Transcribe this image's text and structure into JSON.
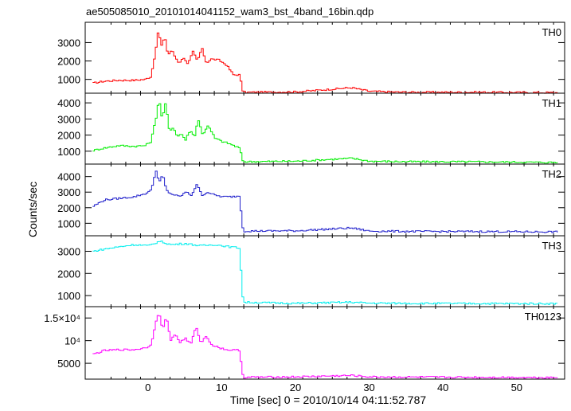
{
  "title": "ae505085010_20101014041152_wam3_bst_4band_16bin.qdp",
  "chart_data": {
    "type": "line",
    "title": "ae505085010_20101014041152_wam3_bst_4band_16bin.qdp",
    "xlabel": "Time [sec] 0 = 2010/10/14 04:11:52.787",
    "ylabel": "Counts/sec",
    "xlim": [
      -8.5,
      56.5
    ],
    "x_ticks": [
      0,
      10,
      20,
      30,
      40,
      50
    ],
    "x_tick_labels": [
      "0",
      "10",
      "20",
      "30",
      "40",
      "50"
    ],
    "grid": false,
    "panels": [
      {
        "name": "TH0",
        "color": "#ff0000",
        "ylim": [
          250,
          4100
        ],
        "y_ticks": [
          1000,
          2000,
          3000
        ],
        "y_tick_labels": [
          "1000",
          "2000",
          "3000"
        ],
        "x": [
          -7.5,
          -6,
          -4,
          -2,
          -0.5,
          0.3,
          1.0,
          1.3,
          1.7,
          2.2,
          2.6,
          3.1,
          3.6,
          4.1,
          4.8,
          5.3,
          6.0,
          6.6,
          7.2,
          7.8,
          8.5,
          9.5,
          10.5,
          11.5,
          12.3,
          12.8,
          20,
          27.5,
          30,
          35,
          45,
          55.5
        ],
        "y": [
          800,
          900,
          950,
          950,
          1000,
          1150,
          2700,
          3700,
          2800,
          3300,
          2300,
          2600,
          2200,
          1900,
          2200,
          1800,
          2500,
          2000,
          2700,
          1900,
          2100,
          2050,
          1800,
          1250,
          1250,
          300,
          320,
          550,
          350,
          300,
          300,
          280
        ]
      },
      {
        "name": "TH1",
        "color": "#00ee00",
        "ylim": [
          200,
          4600
        ],
        "y_ticks": [
          1000,
          2000,
          3000,
          4000
        ],
        "y_tick_labels": [
          "1000",
          "2000",
          "3000",
          "4000"
        ],
        "x": [
          -7.5,
          -6,
          -4,
          -2,
          -0.5,
          0.3,
          1.0,
          1.4,
          1.8,
          2.3,
          2.8,
          3.3,
          3.9,
          4.4,
          5.0,
          5.6,
          6.2,
          6.7,
          7.3,
          8.0,
          9.0,
          10.0,
          11.0,
          12.3,
          12.8,
          20,
          27.5,
          30,
          35,
          45,
          55.5
        ],
        "y": [
          1050,
          1200,
          1350,
          1300,
          1350,
          1600,
          3100,
          4300,
          3000,
          4000,
          2200,
          2500,
          1900,
          2100,
          1700,
          2300,
          1900,
          3000,
          2000,
          2600,
          1800,
          1600,
          1450,
          1200,
          350,
          380,
          560,
          380,
          350,
          340,
          300
        ]
      },
      {
        "name": "TH2",
        "color": "#2222cc",
        "ylim": [
          200,
          4800
        ],
        "y_ticks": [
          1000,
          2000,
          3000,
          4000
        ],
        "y_tick_labels": [
          "1000",
          "2000",
          "3000",
          "4000"
        ],
        "x": [
          -7.5,
          -6,
          -4,
          -2,
          -0.5,
          0.3,
          1.0,
          1.4,
          1.9,
          2.4,
          3.0,
          3.6,
          4.2,
          5.0,
          5.8,
          6.5,
          7.2,
          8.0,
          9.0,
          10.0,
          11.0,
          12.3,
          12.8,
          20,
          27.5,
          30,
          35,
          45,
          55.5
        ],
        "y": [
          2100,
          2500,
          2600,
          2700,
          2900,
          3100,
          4400,
          3600,
          4100,
          3100,
          2900,
          2800,
          2700,
          3000,
          2800,
          3500,
          2800,
          3000,
          2800,
          2700,
          2700,
          2750,
          500,
          520,
          700,
          500,
          480,
          470,
          450
        ]
      },
      {
        "name": "TH3",
        "color": "#00eeee",
        "ylim": [
          500,
          3700
        ],
        "y_ticks": [
          1000,
          2000,
          3000
        ],
        "y_tick_labels": [
          "1000",
          "2000",
          "3000"
        ],
        "x": [
          -7.5,
          -6,
          -4,
          -2,
          0,
          1.5,
          3,
          5,
          7,
          9,
          11,
          12.3,
          12.8,
          20,
          27.5,
          30,
          35,
          45,
          55.5
        ],
        "y": [
          3000,
          3100,
          3200,
          3300,
          3250,
          3450,
          3300,
          3350,
          3250,
          3300,
          3200,
          3150,
          700,
          650,
          700,
          660,
          650,
          640,
          640
        ]
      },
      {
        "name": "TH0123",
        "color": "#ff00ff",
        "ylim": [
          1500,
          17500
        ],
        "y_ticks": [
          5000,
          10000,
          15000
        ],
        "y_tick_labels": [
          "5000",
          "10⁴",
          "1.5×10⁴"
        ],
        "x": [
          -7.5,
          -6,
          -4,
          -2,
          -0.5,
          0.3,
          1.0,
          1.4,
          1.9,
          2.4,
          3.0,
          3.6,
          4.2,
          5.0,
          5.7,
          6.4,
          7.1,
          7.8,
          8.6,
          9.5,
          10.5,
          11.5,
          12.3,
          12.8,
          20,
          27.5,
          30,
          35,
          45,
          55.5
        ],
        "y": [
          7000,
          7800,
          8000,
          8000,
          8400,
          9000,
          14500,
          16000,
          12500,
          15300,
          10000,
          11500,
          9600,
          10500,
          9200,
          13000,
          9500,
          11000,
          9000,
          8500,
          8000,
          7900,
          7900,
          1900,
          2000,
          2300,
          2000,
          1950,
          1900,
          1850
        ]
      }
    ]
  }
}
